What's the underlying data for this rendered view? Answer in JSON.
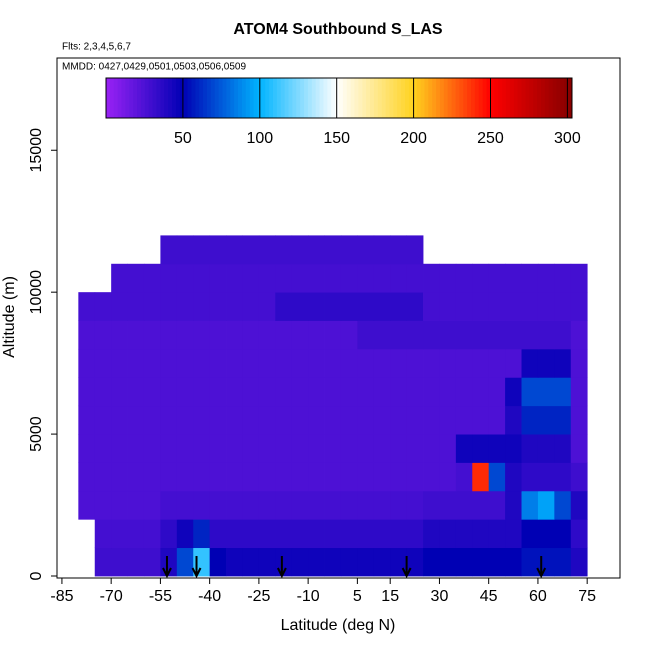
{
  "chart_data": {
    "type": "heatmap",
    "title": "ATOM4 Southbound S_LAS",
    "subtitle": "Flts: 2,3,4,5,6,7",
    "annotation": "MMDD: 0427,0429,0501,0503,0506,0509",
    "x_label": "Latitude (deg N)",
    "y_label": "Altitude (m)",
    "xlim": [
      -86.5,
      85
    ],
    "ylim": [
      -70,
      18250
    ],
    "xticks": [
      -85,
      -70,
      -55,
      -40,
      -25,
      -10,
      5,
      15,
      30,
      45,
      60,
      75
    ],
    "yticks": [
      0,
      5000,
      10000,
      15000
    ],
    "x_edges": [
      -80,
      -75,
      -70,
      -65,
      -60,
      -55,
      -50,
      -45,
      -40,
      -35,
      -30,
      -25,
      -20,
      -15,
      -10,
      -5,
      0,
      5,
      10,
      15,
      20,
      25,
      30,
      35,
      40,
      45,
      50,
      55,
      60,
      65,
      70,
      75
    ],
    "y_edges": [
      0,
      1000,
      2000,
      3000,
      4000,
      5000,
      6000,
      7000,
      8000,
      9000,
      10000,
      11000,
      12000
    ],
    "z": [
      [
        null,
        30,
        30,
        30,
        30,
        40,
        70,
        110,
        50,
        45,
        45,
        45,
        45,
        45,
        45,
        45,
        45,
        45,
        45,
        45,
        45,
        50,
        50,
        50,
        50,
        50,
        50,
        55,
        55,
        55,
        40
      ],
      [
        null,
        28,
        28,
        28,
        28,
        35,
        45,
        60,
        35,
        35,
        35,
        35,
        35,
        35,
        35,
        35,
        35,
        35,
        35,
        35,
        35,
        40,
        40,
        40,
        40,
        40,
        40,
        50,
        50,
        50,
        35
      ],
      [
        25,
        25,
        25,
        25,
        25,
        28,
        28,
        28,
        28,
        28,
        28,
        28,
        28,
        28,
        28,
        28,
        28,
        28,
        28,
        28,
        28,
        30,
        30,
        30,
        30,
        30,
        40,
        85,
        95,
        70,
        40
      ],
      [
        25,
        25,
        25,
        25,
        25,
        25,
        25,
        25,
        25,
        25,
        25,
        25,
        25,
        25,
        25,
        25,
        25,
        25,
        25,
        25,
        25,
        25,
        25,
        28,
        240,
        70,
        40,
        35,
        35,
        35,
        30
      ],
      [
        25,
        25,
        25,
        25,
        25,
        25,
        25,
        25,
        25,
        25,
        25,
        25,
        25,
        25,
        25,
        25,
        25,
        25,
        25,
        25,
        25,
        25,
        25,
        45,
        45,
        45,
        45,
        40,
        40,
        40,
        25
      ],
      [
        25,
        25,
        25,
        25,
        25,
        25,
        25,
        25,
        25,
        25,
        25,
        25,
        25,
        25,
        25,
        25,
        25,
        25,
        25,
        25,
        25,
        25,
        25,
        25,
        25,
        25,
        40,
        60,
        60,
        60,
        25
      ],
      [
        25,
        25,
        25,
        25,
        25,
        25,
        25,
        25,
        25,
        25,
        25,
        25,
        25,
        25,
        25,
        25,
        25,
        25,
        25,
        25,
        25,
        25,
        25,
        25,
        25,
        25,
        45,
        70,
        70,
        70,
        25
      ],
      [
        25,
        25,
        25,
        25,
        25,
        25,
        25,
        25,
        25,
        25,
        25,
        25,
        25,
        25,
        25,
        25,
        25,
        25,
        25,
        25,
        25,
        25,
        25,
        25,
        25,
        25,
        25,
        45,
        45,
        45,
        25
      ],
      [
        25,
        25,
        25,
        25,
        25,
        25,
        25,
        25,
        25,
        25,
        25,
        25,
        25,
        25,
        25,
        25,
        25,
        30,
        30,
        30,
        30,
        30,
        30,
        30,
        30,
        30,
        30,
        30,
        30,
        30,
        25
      ],
      [
        28,
        28,
        28,
        28,
        28,
        28,
        28,
        28,
        28,
        28,
        28,
        28,
        35,
        35,
        35,
        35,
        35,
        35,
        35,
        35,
        35,
        28,
        28,
        28,
        28,
        28,
        28,
        28,
        28,
        28,
        28
      ],
      [
        null,
        null,
        28,
        28,
        28,
        28,
        28,
        28,
        28,
        28,
        28,
        28,
        28,
        28,
        28,
        28,
        28,
        28,
        28,
        28,
        28,
        28,
        28,
        28,
        28,
        28,
        28,
        28,
        28,
        28,
        28
      ],
      [
        null,
        null,
        null,
        null,
        null,
        30,
        30,
        30,
        30,
        30,
        30,
        30,
        30,
        30,
        30,
        30,
        30,
        30,
        30,
        30,
        30,
        null,
        null,
        null,
        null,
        null,
        null,
        null,
        null,
        null,
        null
      ]
    ],
    "colorscale": [
      [
        0,
        "#9a22f5"
      ],
      [
        50,
        "#0000b4"
      ],
      [
        100,
        "#00b4ff"
      ],
      [
        150,
        "#ffffff"
      ],
      [
        200,
        "#ffd21e"
      ],
      [
        250,
        "#ff0000"
      ],
      [
        300,
        "#8b0000"
      ]
    ],
    "colorbar_lim": [
      0,
      303
    ],
    "colorbar_ticks": [
      50,
      100,
      150,
      200,
      250,
      300
    ],
    "arrows_x": [
      -53,
      -44,
      -18,
      20,
      61
    ]
  }
}
